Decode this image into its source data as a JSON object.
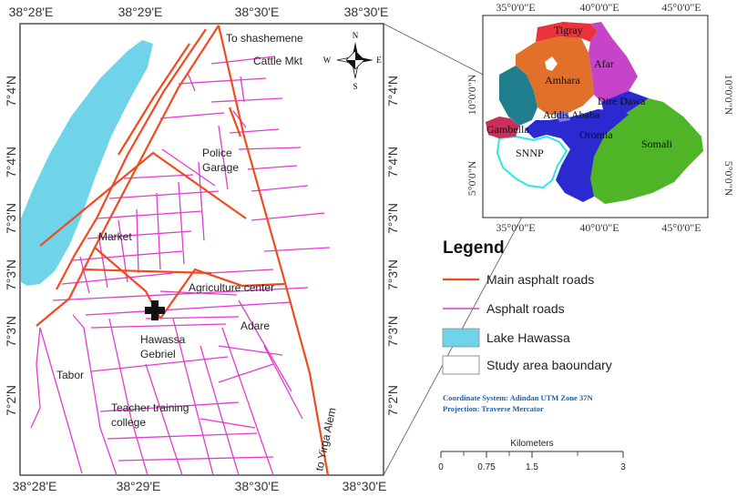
{
  "main_map": {
    "top_ticks": [
      "38°28'E",
      "38°29'E",
      "38°30'E",
      "38°30'E"
    ],
    "bottom_ticks": [
      "38°28'E",
      "38°29'E",
      "38°30'E",
      "38°30'E"
    ],
    "left_ticks": [
      "7°4'N",
      "7°4'N",
      "7°3'N",
      "7°3'N",
      "7°3'N",
      "7°2'N"
    ],
    "right_ticks": [
      "7°4'N",
      "7°4'N",
      "7°3'N",
      "7°3'N",
      "7°3'N",
      "7°2'N"
    ],
    "labels": {
      "to_shashemene": "To shashemene",
      "cattle_mkt": "Cattle Mkt",
      "police": "Police",
      "garage": "Garage",
      "market": "Market",
      "agriculture_center": "Agriculture center",
      "hawassa": "Hawassa",
      "gebriel": "Gebriel",
      "adare": "Adare",
      "tabor": "Tabor",
      "teacher_training": "Teacher training",
      "college": "college",
      "to_yirga_alem": "to Yirga Alem"
    },
    "north_arrow": {
      "n": "N",
      "s": "S",
      "e": "E",
      "w": "W"
    }
  },
  "inset_map": {
    "top_ticks": [
      "35°0'0\"E",
      "40°0'0\"E",
      "45°0'0\"E"
    ],
    "bottom_ticks": [
      "35°0'0\"E",
      "40°0'0\"E",
      "45°0'0\"E"
    ],
    "left_ticks": [
      "10°0'0\"N",
      "5°0'0\"N"
    ],
    "right_ticks": [
      "10°0'0\"N",
      "5°0'0\"N"
    ],
    "regions": [
      "Tigray",
      "Afar",
      "Amhara",
      "Dire Dawa",
      "Addis Ababa",
      "Gambella",
      "SNNP",
      "Oromia",
      "Somali"
    ],
    "colors": {
      "tigray": "#e8323c",
      "afar": "#c544c8",
      "amhara": "#e0702a",
      "benishangul": "#1f7f8f",
      "gambella": "#c8305a",
      "snnp": "#ffffff",
      "oromia": "#2a2ad0",
      "somali": "#4fb526"
    }
  },
  "legend": {
    "title": "Legend",
    "items": [
      {
        "label": "Main asphalt roads",
        "color": "#f04a1e"
      },
      {
        "label": "Asphalt roads",
        "color": "#e33ad0"
      },
      {
        "label": "Lake Hawassa",
        "color": "#6fd3ea"
      },
      {
        "label": "Study area baoundary",
        "color": "#ffffff"
      }
    ],
    "coord_system": "Coordinate System: Adindan UTM Zone 37N",
    "projection": "Projection: Traverse Mercator"
  },
  "scale_bar": {
    "title": "Kilometers",
    "ticks": [
      "0",
      "0.75",
      "1.5",
      "3"
    ]
  }
}
